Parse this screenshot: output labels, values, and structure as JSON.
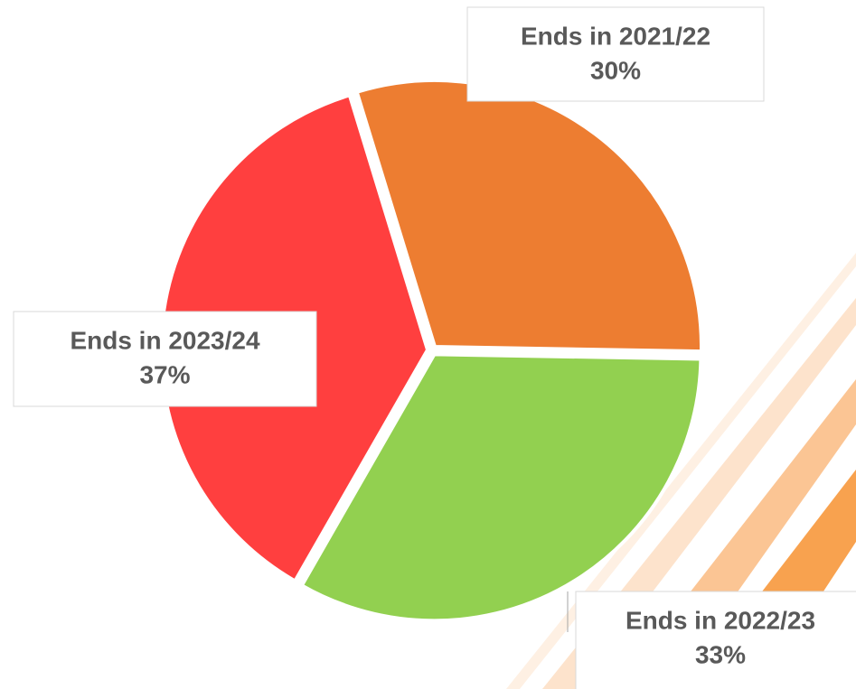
{
  "chart_data": {
    "type": "pie",
    "categories": [
      "Ends in 2021/22",
      "Ends in 2022/23",
      "Ends in 2023/24"
    ],
    "values": [
      30,
      33,
      37
    ],
    "value_labels": [
      "30%",
      "33%",
      "37%"
    ],
    "colors": [
      "#ED7D31",
      "#92D050",
      "#FF3F3F"
    ]
  }
}
